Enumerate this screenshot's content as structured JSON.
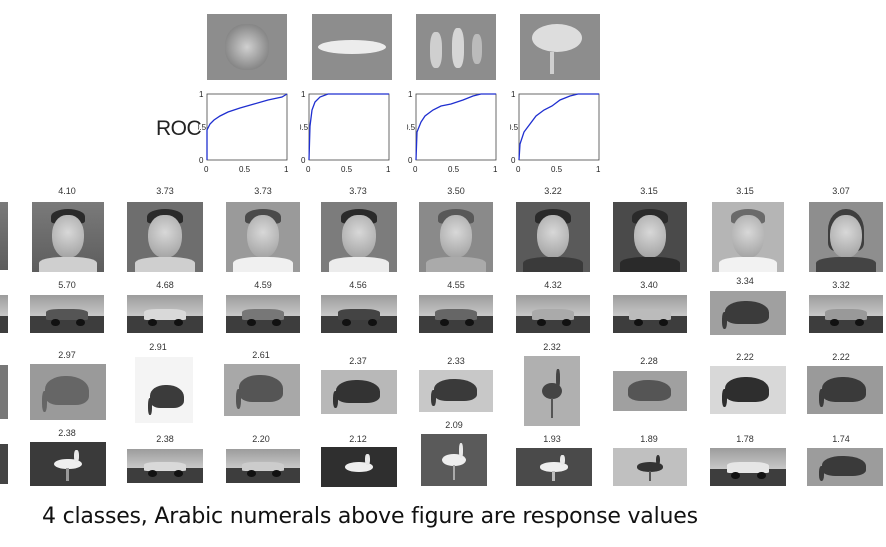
{
  "roc_label": "ROC",
  "roc_plots": [
    {
      "y_ticks": [
        "1",
        "0.5",
        "0"
      ],
      "x_ticks": [
        "0",
        "0.5",
        "1"
      ]
    },
    {
      "y_ticks": [
        "1",
        "0.5",
        "0"
      ],
      "x_ticks": [
        "0",
        "0.5",
        "1"
      ]
    },
    {
      "y_ticks": [
        "1",
        "0.5",
        "0"
      ],
      "x_ticks": [
        "0",
        "0.5",
        "1"
      ]
    },
    {
      "y_ticks": [
        "1",
        "0.5",
        "0"
      ],
      "x_ticks": [
        "0",
        "0.5",
        "1"
      ]
    }
  ],
  "rows": [
    {
      "kind": "face",
      "scores": [
        "4.10",
        "3.73",
        "3.73",
        "3.73",
        "3.50",
        "3.22",
        "3.15",
        "3.15",
        "3.07"
      ]
    },
    {
      "kind": "car",
      "scores": [
        "5.70",
        "4.68",
        "4.59",
        "4.56",
        "4.55",
        "4.32",
        "3.40",
        "3.34",
        "3.32"
      ]
    },
    {
      "kind": "elephant",
      "scores": [
        "2.97",
        "2.91",
        "2.61",
        "2.37",
        "2.33",
        "2.32",
        "2.28",
        "2.22",
        "2.22"
      ]
    },
    {
      "kind": "bird",
      "scores": [
        "2.38",
        "2.38",
        "2.20",
        "2.12",
        "2.09",
        "1.93",
        "1.89",
        "1.78",
        "1.74"
      ]
    }
  ],
  "caption": "4 classes, Arabic numerals above figure are response values",
  "colors": {
    "roc_curve": "#1f2fd0",
    "background": "#ffffff"
  }
}
